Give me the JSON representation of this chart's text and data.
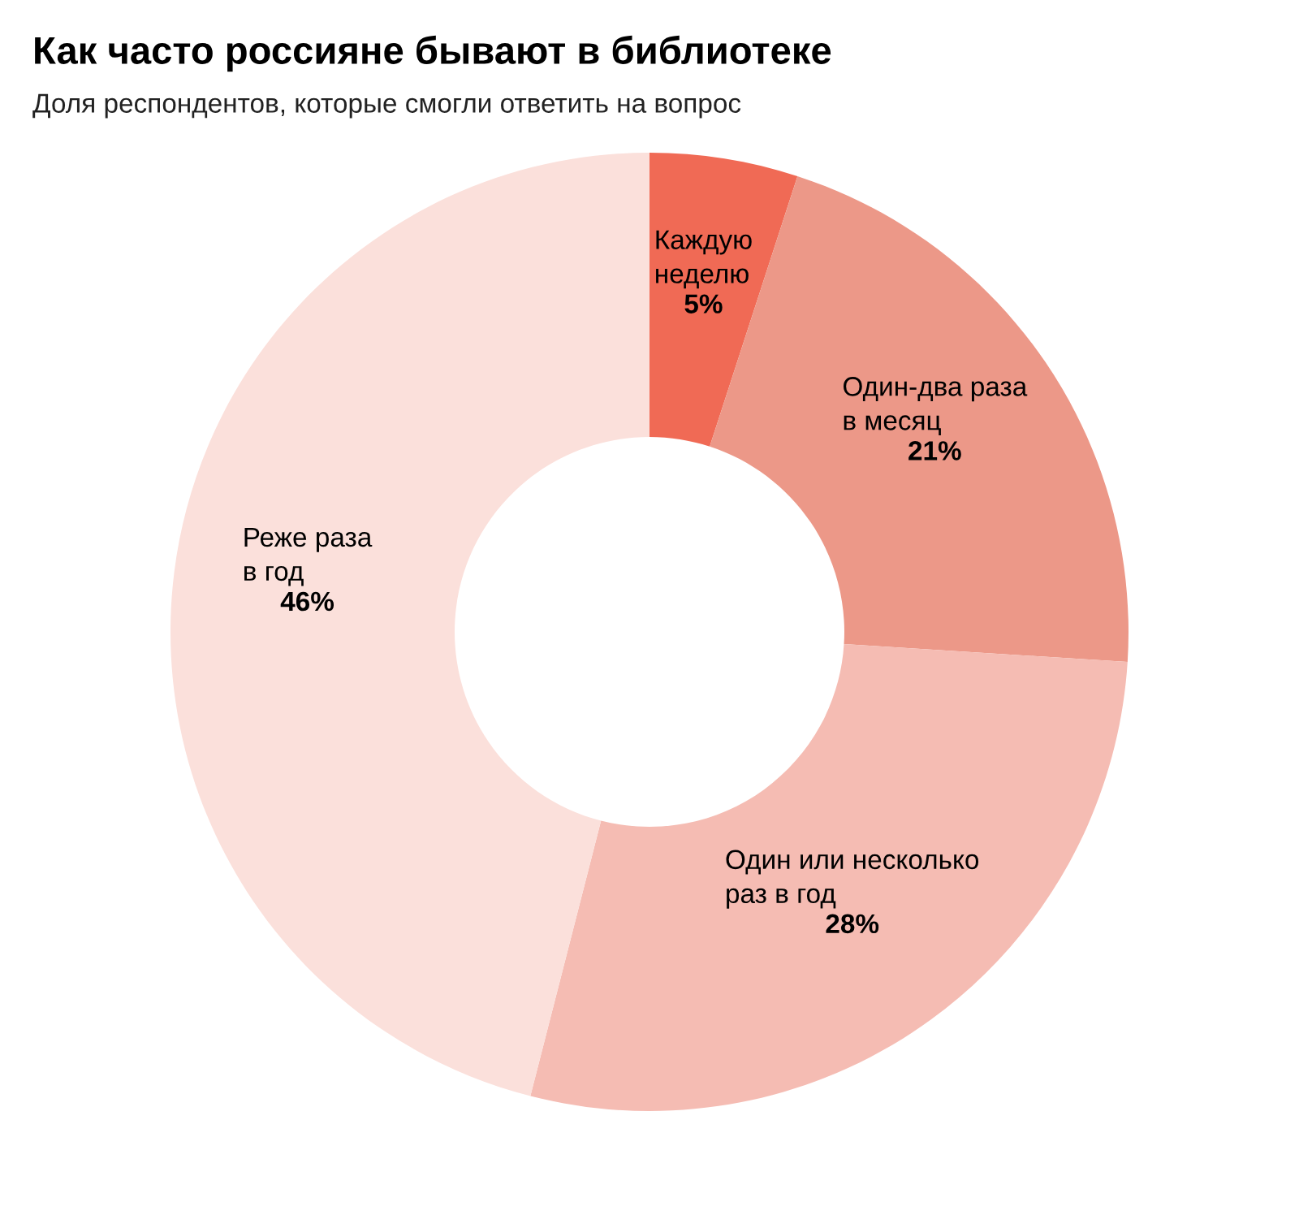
{
  "chart_data": {
    "type": "donut",
    "title": "Как часто россияне бывают в библиотеке",
    "subtitle": "Доля респондентов, которые смогли ответить на вопрос",
    "categories": [
      "Каждую\nнеделю",
      "Один-два раза\nв месяц",
      "Один или несколько\nраз в год",
      "Реже раза\nв год"
    ],
    "values": [
      5,
      21,
      28,
      46
    ],
    "colors": [
      "#f06a55",
      "#ec9888",
      "#f5bcb3",
      "#fbe0db"
    ],
    "value_labels": [
      "5%",
      "21%",
      "28%",
      "46%"
    ]
  }
}
